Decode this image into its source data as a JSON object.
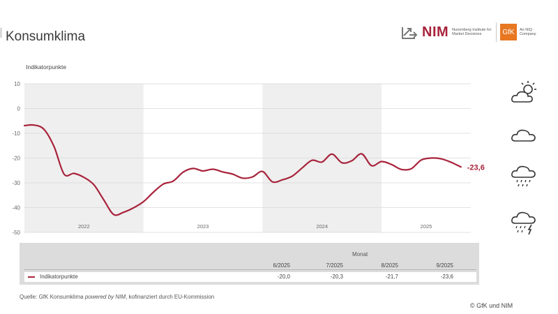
{
  "page": {
    "title": "Konsumklima",
    "source_prefix": "Quelle: GfK Konsumklima ",
    "source_italic": "powered by NIM",
    "source_suffix": ", kofinanziert durch EU-Kommission",
    "copyright": "© GfK und NIM"
  },
  "logos": {
    "nim_text": "NIM",
    "nim_sub": "Nuremberg Institute for Market Decisions",
    "gfk_text": "GfK",
    "gfk_sub": "An NIQ Company"
  },
  "weather_icons": [
    "sun-cloud-icon",
    "cloud-icon",
    "rain-cloud-icon",
    "thunderstorm-cloud-icon"
  ],
  "colors": {
    "series": "#a8233b",
    "shade": "#efefef",
    "grid": "#d9d9d9",
    "table_bg": "#dcdcdc"
  },
  "chart_data": {
    "type": "line",
    "ylabel": "Indikatorpunkte",
    "ylim": [
      -50,
      10
    ],
    "yticks": [
      "10",
      "0",
      "-10",
      "-20",
      "-30",
      "-40",
      "-50"
    ],
    "xlim": [
      "2022-01",
      "2025-10"
    ],
    "year_labels": [
      "2022",
      "2023",
      "2024",
      "2025"
    ],
    "shaded_years": [
      "2022",
      "2024"
    ],
    "grid": true,
    "series": [
      {
        "name": "Indikatorpunkte",
        "points": [
          [
            "2022-01",
            -6.9
          ],
          [
            "2022-02",
            -6.7
          ],
          [
            "2022-03",
            -8.5
          ],
          [
            "2022-04",
            -15.5
          ],
          [
            "2022-05",
            -26.5
          ],
          [
            "2022-06",
            -26.2
          ],
          [
            "2022-07",
            -27.8
          ],
          [
            "2022-08",
            -30.8
          ],
          [
            "2022-09",
            -36.9
          ],
          [
            "2022-10",
            -42.8
          ],
          [
            "2022-11",
            -41.9
          ],
          [
            "2022-12",
            -40.1
          ],
          [
            "2023-01",
            -37.6
          ],
          [
            "2023-02",
            -33.8
          ],
          [
            "2023-03",
            -30.5
          ],
          [
            "2023-04",
            -29.3
          ],
          [
            "2023-05",
            -25.7
          ],
          [
            "2023-06",
            -24.2
          ],
          [
            "2023-07",
            -25.2
          ],
          [
            "2023-08",
            -24.5
          ],
          [
            "2023-09",
            -25.6
          ],
          [
            "2023-10",
            -26.5
          ],
          [
            "2023-11",
            -28.1
          ],
          [
            "2023-12",
            -27.6
          ],
          [
            "2024-01",
            -25.4
          ],
          [
            "2024-02",
            -29.6
          ],
          [
            "2024-03",
            -28.8
          ],
          [
            "2024-04",
            -27.3
          ],
          [
            "2024-05",
            -24.0
          ],
          [
            "2024-06",
            -20.9
          ],
          [
            "2024-07",
            -21.6
          ],
          [
            "2024-08",
            -18.4
          ],
          [
            "2024-09",
            -21.9
          ],
          [
            "2024-10",
            -21.1
          ],
          [
            "2024-11",
            -18.3
          ],
          [
            "2024-12",
            -23.1
          ],
          [
            "2025-01",
            -21.4
          ],
          [
            "2025-02",
            -22.6
          ],
          [
            "2025-03",
            -24.6
          ],
          [
            "2025-04",
            -24.3
          ],
          [
            "2025-05",
            -20.8
          ],
          [
            "2025-06",
            -20.0
          ],
          [
            "2025-07",
            -20.3
          ],
          [
            "2025-08",
            -21.7
          ],
          [
            "2025-09",
            -23.6
          ]
        ]
      }
    ],
    "last_value_label": "-23,6"
  },
  "table": {
    "header": "Monat",
    "columns": [
      "6/2025",
      "7/2025",
      "8/2025",
      "9/2025"
    ],
    "rows": [
      {
        "label": "Indikatorpunkte",
        "values": [
          "-20,0",
          "-20,3",
          "-21,7",
          "-23,6"
        ]
      }
    ]
  }
}
